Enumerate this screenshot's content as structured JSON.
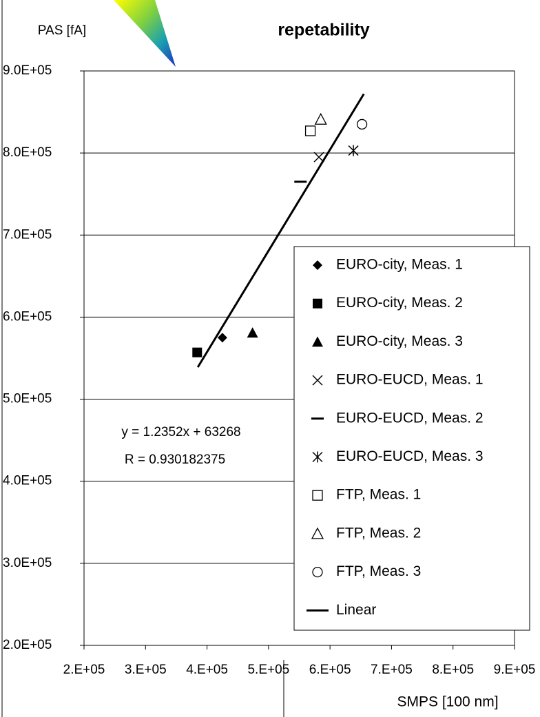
{
  "chart_data": {
    "type": "scatter",
    "title": "repetability",
    "x_label": "SMPS [100 nm]",
    "y_label": "PAS [fA]",
    "annotations": [
      "y = 1.2352x + 63268",
      "R = 0.930182375"
    ],
    "xlim": [
      200000,
      900000
    ],
    "xticks": [
      {
        "value": 200000,
        "label": "2.E+05"
      },
      {
        "value": 300000,
        "label": "3.E+05"
      },
      {
        "value": 400000,
        "label": "4.E+05"
      },
      {
        "value": 500000,
        "label": "5.E+05"
      },
      {
        "value": 600000,
        "label": "6.E+05"
      },
      {
        "value": 700000,
        "label": "7.E+05"
      },
      {
        "value": 800000,
        "label": "8.E+05"
      },
      {
        "value": 900000,
        "label": "9.E+05"
      }
    ],
    "ylim": [
      200000,
      900000
    ],
    "yticks": [
      {
        "value": 200000,
        "label": "2.0E+05"
      },
      {
        "value": 300000,
        "label": "3.0E+05"
      },
      {
        "value": 400000,
        "label": "4.0E+05"
      },
      {
        "value": 500000,
        "label": "5.0E+05"
      },
      {
        "value": 600000,
        "label": "6.0E+05"
      },
      {
        "value": 700000,
        "label": "7.0E+05"
      },
      {
        "value": 800000,
        "label": "8.0E+05"
      },
      {
        "value": 900000,
        "label": "9.0E+05"
      }
    ],
    "grid": true,
    "legend": "right",
    "series": [
      {
        "name": "EURO-city, Meas. 1",
        "color": "#000000",
        "marker": "diamond",
        "x": [
          425000
        ],
        "values": [
          575000
        ]
      },
      {
        "name": "EURO-city, Meas. 2",
        "color": "#000000",
        "marker": "square",
        "x": [
          384000
        ],
        "values": [
          557000
        ]
      },
      {
        "name": "EURO-city, Meas. 3",
        "color": "#000000",
        "marker": "triangle",
        "x": [
          474000
        ],
        "values": [
          581000
        ]
      },
      {
        "name": "EURO-EUCD, Meas. 1",
        "color": "#000000",
        "marker": "x",
        "x": [
          582000
        ],
        "values": [
          795000
        ]
      },
      {
        "name": "EURO-EUCD, Meas. 2",
        "color": "#000000",
        "marker": "dash",
        "x": [
          552000
        ],
        "values": [
          765000
        ]
      },
      {
        "name": "EURO-EUCD, Meas. 3",
        "color": "#000000",
        "marker": "star",
        "x": [
          638000
        ],
        "values": [
          803000
        ]
      },
      {
        "name": "FTP, Meas. 1",
        "color": "#000000",
        "marker": "square-open",
        "x": [
          568000
        ],
        "values": [
          827000
        ]
      },
      {
        "name": "FTP, Meas. 2",
        "color": "#000000",
        "marker": "triangle-open",
        "x": [
          585000
        ],
        "values": [
          841000
        ]
      },
      {
        "name": "FTP, Meas. 3",
        "color": "#000000",
        "marker": "circle-open",
        "x": [
          652000
        ],
        "values": [
          835000
        ]
      },
      {
        "name": "Linear",
        "color": "#000000",
        "marker": "line",
        "x": [
          385000,
          655000
        ],
        "values": [
          539000,
          872000
        ]
      }
    ]
  }
}
